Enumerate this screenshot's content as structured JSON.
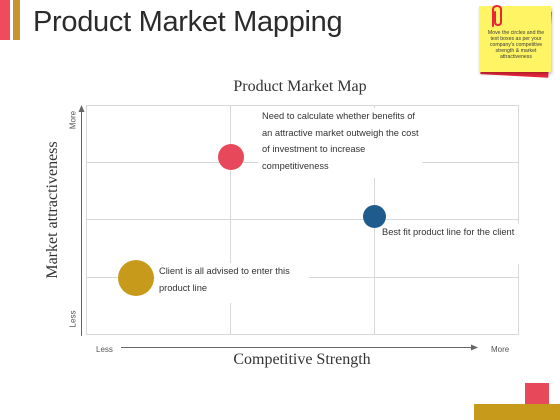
{
  "colors": {
    "accent_left": "#f04b5a",
    "accent_right": "#c9952a",
    "sticky_yellow": "#fff463",
    "sticky_red": "#e8263a",
    "dot_red": "#e8495a",
    "dot_blue": "#1f5b8c",
    "dot_gold": "#c79a1c",
    "corner_red": "#e8495a",
    "corner_bar": "#c79a1c",
    "grid": "#d8d8d8"
  },
  "header": {
    "title": "Product Market Mapping"
  },
  "sticky_note": {
    "text": "Move the circles and the text boxes as per your company's competitive strength & market attractiveness",
    "icon": "paperclip-icon"
  },
  "map": {
    "title": "Product Market Map",
    "y_label": "Market attractiveness",
    "x_label": "Competitive Strength",
    "y_more": "More",
    "y_less": "Less",
    "x_less": "Less",
    "x_more": "More",
    "callouts": {
      "red": "Need to calculate whether benefits of an attractive market outweigh the cost of investment to increase competitiveness",
      "blue": "Best fit product line for the client",
      "gold": "Client is all advised to enter this product line"
    }
  }
}
